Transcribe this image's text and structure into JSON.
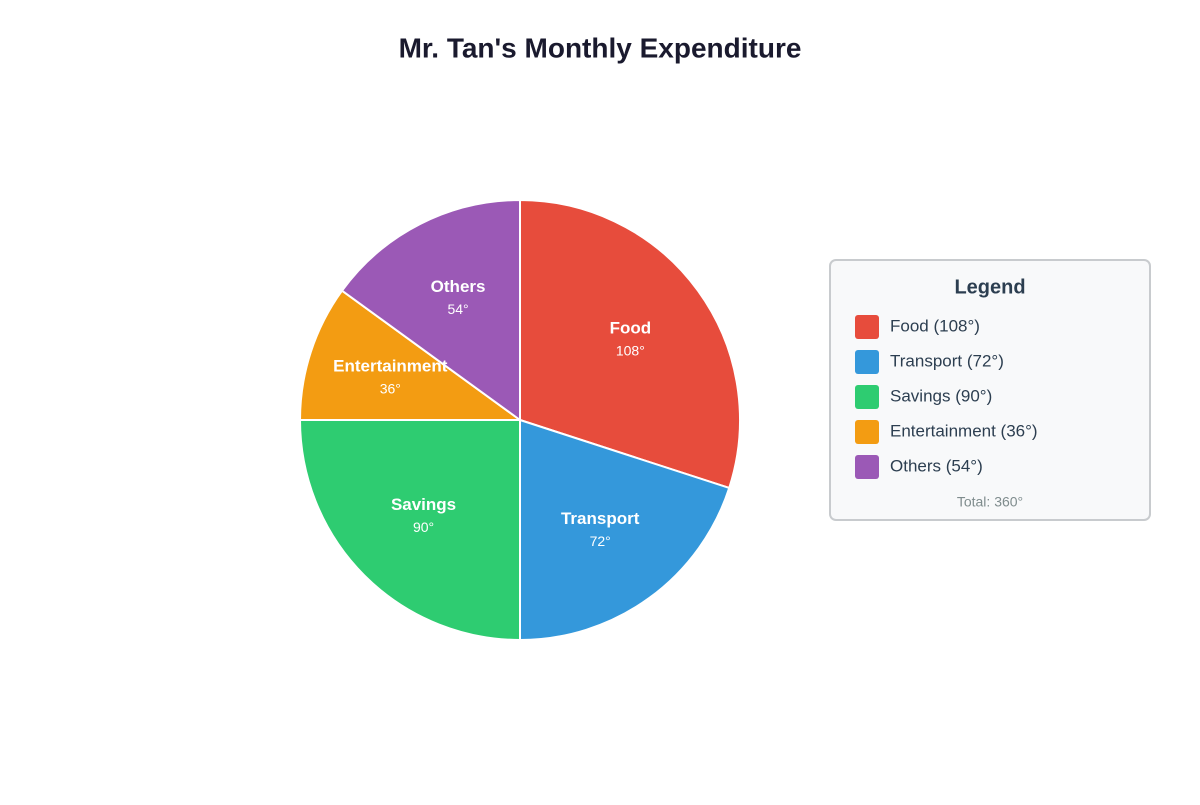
{
  "chart_data": {
    "type": "pie",
    "title": "Mr. Tan's Monthly Expenditure",
    "categories": [
      "Food",
      "Transport",
      "Savings",
      "Entertainment",
      "Others"
    ],
    "values": [
      108,
      72,
      90,
      36,
      54
    ],
    "value_labels": [
      "108°",
      "72°",
      "90°",
      "36°",
      "54°"
    ],
    "colors": [
      "#e74c3c",
      "#3498db",
      "#2ecc71",
      "#f39c12",
      "#9b59b6"
    ],
    "legend": {
      "title": "Legend",
      "items": [
        "Food (108°)",
        "Transport (72°)",
        "Savings (90°)",
        "Entertainment (36°)",
        "Others (54°)"
      ],
      "total": "Total: 360°"
    }
  }
}
